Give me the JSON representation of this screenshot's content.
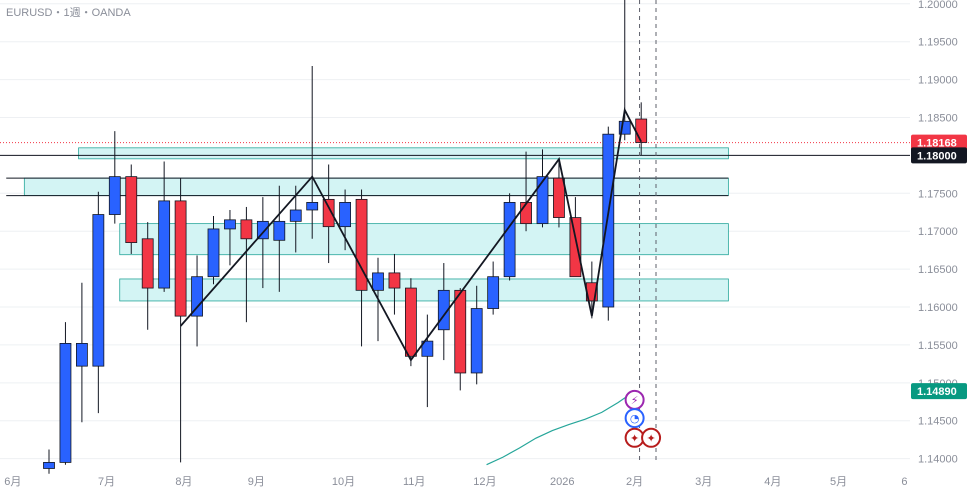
{
  "symbol_label": "EURUSD・1週・OANDA",
  "chart_data": {
    "type": "candlestick",
    "ylim": [
      1.1385,
      1.2005
    ],
    "y_ticks": [
      "1.14000",
      "1.14500",
      "1.15000",
      "1.15500",
      "1.16000",
      "1.16500",
      "1.17000",
      "1.17500",
      "1.18000",
      "1.18500",
      "1.19000",
      "1.19500",
      "1.20000"
    ],
    "x_tick_labels": [
      {
        "label": "6月",
        "i": -2.2
      },
      {
        "label": "7月",
        "i": 3.5
      },
      {
        "label": "8月",
        "i": 8.2
      },
      {
        "label": "9月",
        "i": 12.6
      },
      {
        "label": "10月",
        "i": 17.9
      },
      {
        "label": "11月",
        "i": 22.2
      },
      {
        "label": "12月",
        "i": 26.5
      },
      {
        "label": "2026",
        "i": 31.2
      },
      {
        "label": "2月",
        "i": 35.6
      },
      {
        "label": "3月",
        "i": 39.8
      },
      {
        "label": "4月",
        "i": 44.0
      },
      {
        "label": "5月",
        "i": 48.0
      },
      {
        "label": "6",
        "i": 52.0
      }
    ],
    "candles": [
      {
        "o": 1.1387,
        "h": 1.1412,
        "l": 1.138,
        "c": 1.1395
      },
      {
        "o": 1.1395,
        "h": 1.158,
        "l": 1.1392,
        "c": 1.1552
      },
      {
        "o": 1.1522,
        "h": 1.1632,
        "l": 1.1448,
        "c": 1.1552
      },
      {
        "o": 1.1522,
        "h": 1.1752,
        "l": 1.146,
        "c": 1.1722
      },
      {
        "o": 1.1722,
        "h": 1.1832,
        "l": 1.171,
        "c": 1.1772
      },
      {
        "o": 1.1772,
        "h": 1.1788,
        "l": 1.167,
        "c": 1.1685
      },
      {
        "o": 1.169,
        "h": 1.1712,
        "l": 1.157,
        "c": 1.1625
      },
      {
        "o": 1.1625,
        "h": 1.1792,
        "l": 1.162,
        "c": 1.174
      },
      {
        "o": 1.174,
        "h": 1.177,
        "l": 1.1395,
        "c": 1.1588
      },
      {
        "o": 1.1588,
        "h": 1.1668,
        "l": 1.1548,
        "c": 1.164
      },
      {
        "o": 1.164,
        "h": 1.172,
        "l": 1.163,
        "c": 1.1703
      },
      {
        "o": 1.1703,
        "h": 1.1728,
        "l": 1.1655,
        "c": 1.1715
      },
      {
        "o": 1.1715,
        "h": 1.1732,
        "l": 1.158,
        "c": 1.169
      },
      {
        "o": 1.169,
        "h": 1.1745,
        "l": 1.1625,
        "c": 1.1713
      },
      {
        "o": 1.1688,
        "h": 1.176,
        "l": 1.162,
        "c": 1.1713
      },
      {
        "o": 1.1713,
        "h": 1.176,
        "l": 1.1672,
        "c": 1.1728
      },
      {
        "o": 1.1728,
        "h": 1.1918,
        "l": 1.169,
        "c": 1.1738
      },
      {
        "o": 1.1742,
        "h": 1.1788,
        "l": 1.1658,
        "c": 1.1706
      },
      {
        "o": 1.1706,
        "h": 1.1755,
        "l": 1.1675,
        "c": 1.1738
      },
      {
        "o": 1.1742,
        "h": 1.1755,
        "l": 1.1548,
        "c": 1.1622
      },
      {
        "o": 1.1622,
        "h": 1.1665,
        "l": 1.1555,
        "c": 1.1645
      },
      {
        "o": 1.1645,
        "h": 1.167,
        "l": 1.159,
        "c": 1.1625
      },
      {
        "o": 1.1625,
        "h": 1.1638,
        "l": 1.1522,
        "c": 1.1535
      },
      {
        "o": 1.1535,
        "h": 1.159,
        "l": 1.1468,
        "c": 1.1555
      },
      {
        "o": 1.157,
        "h": 1.1658,
        "l": 1.153,
        "c": 1.1622
      },
      {
        "o": 1.1622,
        "h": 1.1625,
        "l": 1.149,
        "c": 1.1513
      },
      {
        "o": 1.1513,
        "h": 1.1628,
        "l": 1.1498,
        "c": 1.1598
      },
      {
        "o": 1.1598,
        "h": 1.166,
        "l": 1.159,
        "c": 1.164
      },
      {
        "o": 1.164,
        "h": 1.175,
        "l": 1.1635,
        "c": 1.1738
      },
      {
        "o": 1.1738,
        "h": 1.1805,
        "l": 1.17,
        "c": 1.171
      },
      {
        "o": 1.171,
        "h": 1.1808,
        "l": 1.1705,
        "c": 1.1772
      },
      {
        "o": 1.177,
        "h": 1.1795,
        "l": 1.1705,
        "c": 1.1718
      },
      {
        "o": 1.1718,
        "h": 1.1745,
        "l": 1.164,
        "c": 1.164
      },
      {
        "o": 1.1632,
        "h": 1.166,
        "l": 1.1585,
        "c": 1.1608
      },
      {
        "o": 1.16,
        "h": 1.1838,
        "l": 1.1582,
        "c": 1.1828
      },
      {
        "o": 1.1828,
        "h": 1.2082,
        "l": 1.182,
        "c": 1.1845
      },
      {
        "o": 1.1848,
        "h": 1.187,
        "l": 1.18,
        "c": 1.1817
      }
    ],
    "zigzag": [
      {
        "i": 8,
        "price": 1.1575
      },
      {
        "i": 16,
        "price": 1.1772
      },
      {
        "i": 22,
        "price": 1.153
      },
      {
        "i": 31,
        "price": 1.1795
      },
      {
        "i": 33,
        "price": 1.1588
      },
      {
        "i": 35,
        "price": 1.186
      },
      {
        "i": 36,
        "price": 1.1818
      }
    ],
    "zones": [
      {
        "from_i": 1.8,
        "to_i": 41.3,
        "top": 1.181,
        "bottom": 1.17955
      },
      {
        "from_i": -1.5,
        "to_i": 41.3,
        "top": 1.177,
        "bottom": 1.1747
      },
      {
        "from_i": 4.3,
        "to_i": 41.3,
        "top": 1.171,
        "bottom": 1.1669
      },
      {
        "from_i": 4.3,
        "to_i": 41.3,
        "top": 1.1637,
        "bottom": 1.1608
      }
    ],
    "lines": [
      {
        "price": 1.177,
        "from_i": -2.6,
        "to_i": 41.3
      },
      {
        "price": 1.1747,
        "from_i": -2.6,
        "to_i": 41.3
      }
    ],
    "horizontal_line": 1.18,
    "dotted_line": 1.18168,
    "vertical_dashed_i": [
      35.9,
      36.9
    ],
    "indicator_curve": [
      {
        "i": 26.6,
        "price": 1.1392
      },
      {
        "i": 27.6,
        "price": 1.1402
      },
      {
        "i": 28.6,
        "price": 1.1414
      },
      {
        "i": 29.6,
        "price": 1.1427
      },
      {
        "i": 30.6,
        "price": 1.1437
      },
      {
        "i": 31.6,
        "price": 1.1445
      },
      {
        "i": 32.6,
        "price": 1.1452
      },
      {
        "i": 33.6,
        "price": 1.1461
      },
      {
        "i": 34.6,
        "price": 1.1474
      },
      {
        "i": 35.6,
        "price": 1.1489
      }
    ],
    "price_tags": [
      {
        "label": "1.18168",
        "price": 1.18168,
        "bg": "#f23645",
        "fg": "#ffffff"
      },
      {
        "label": "1.18000",
        "price": 1.18,
        "bg": "#131722",
        "fg": "#ffffff"
      },
      {
        "label": "1.14890",
        "price": 1.1489,
        "bg": "#089981",
        "fg": "#ffffff"
      }
    ],
    "event_icons": [
      {
        "name": "lightning-icon",
        "i": 35.6,
        "price": 1.14775,
        "glyph": "⚡",
        "color": "#9c27b0"
      },
      {
        "name": "clock-icon",
        "i": 35.6,
        "price": 1.14535,
        "glyph": "◔",
        "color": "#2962ff"
      },
      {
        "name": "us-flag-icon",
        "i": 35.6,
        "price": 1.14275,
        "glyph": "✦",
        "color": "#b71c1c"
      },
      {
        "name": "us-flag-icon",
        "i": 36.6,
        "price": 1.14275,
        "glyph": "✦",
        "color": "#b71c1c"
      }
    ],
    "colors": {
      "up": "#2962ff",
      "down": "#f23645",
      "wick": "#131722",
      "zone_fill": "#d3f4f4",
      "zone_stroke": "#26a69a",
      "indicator": "#26a69a",
      "grid": "#eef0f3"
    }
  }
}
